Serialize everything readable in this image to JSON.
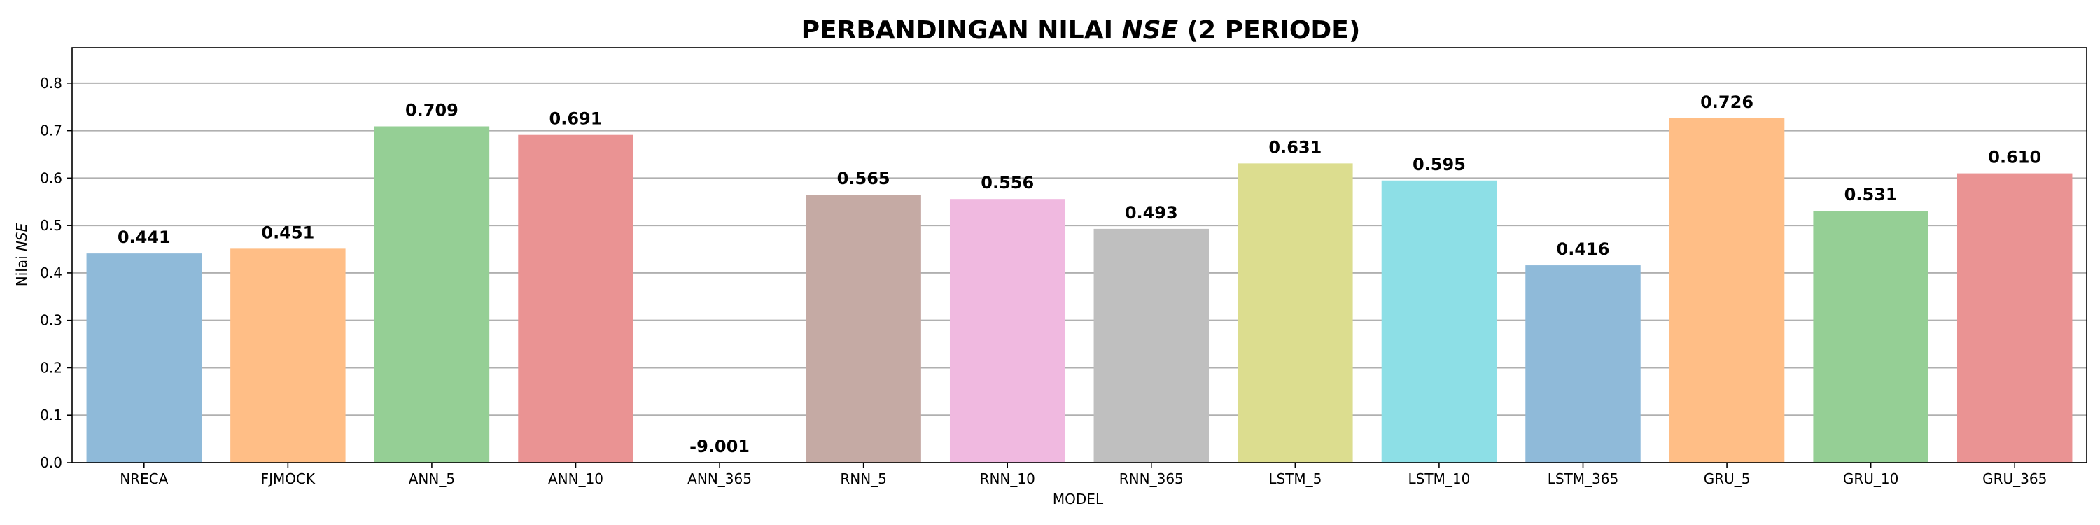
{
  "chart_data": {
    "type": "bar",
    "title_parts": [
      "PERBANDINGAN NILAI ",
      "NSE",
      " (2 PERIODE)"
    ],
    "xlabel": "MODEL",
    "ylabel_parts": [
      "Nilai ",
      "NSE"
    ],
    "categories": [
      "NRECA",
      "FJMOCK",
      "ANN_5",
      "ANN_10",
      "ANN_365",
      "RNN_5",
      "RNN_10",
      "RNN_365",
      "LSTM_5",
      "LSTM_10",
      "LSTM_365",
      "GRU_5",
      "GRU_10",
      "GRU_365"
    ],
    "values": [
      0.441,
      0.451,
      0.709,
      0.691,
      -9.001,
      0.565,
      0.556,
      0.493,
      0.631,
      0.595,
      0.416,
      0.726,
      0.531,
      0.61
    ],
    "value_labels": [
      "0.441",
      "0.451",
      "0.709",
      "0.691",
      "-9.001",
      "0.565",
      "0.556",
      "0.493",
      "0.631",
      "0.595",
      "0.416",
      "0.726",
      "0.531",
      "0.610"
    ],
    "colors": [
      "#8fbad9",
      "#ffbe86",
      "#95cf95",
      "#ea9393",
      "#c9b3d7",
      "#c5aaa4",
      "#f0b9e0",
      "#bfbfbf",
      "#dcdd8f",
      "#8ddfe6",
      "#8fbad9",
      "#ffbe86",
      "#95cf95",
      "#ea9393"
    ],
    "ylim": [
      0,
      0.875
    ],
    "yticks": [
      0.0,
      0.1,
      0.2,
      0.3,
      0.4,
      0.5,
      0.6,
      0.7,
      0.8
    ],
    "ytick_labels": [
      "0.0",
      "0.1",
      "0.2",
      "0.3",
      "0.4",
      "0.5",
      "0.6",
      "0.7",
      "0.8"
    ],
    "grid": "horizontal",
    "legend": "none"
  }
}
